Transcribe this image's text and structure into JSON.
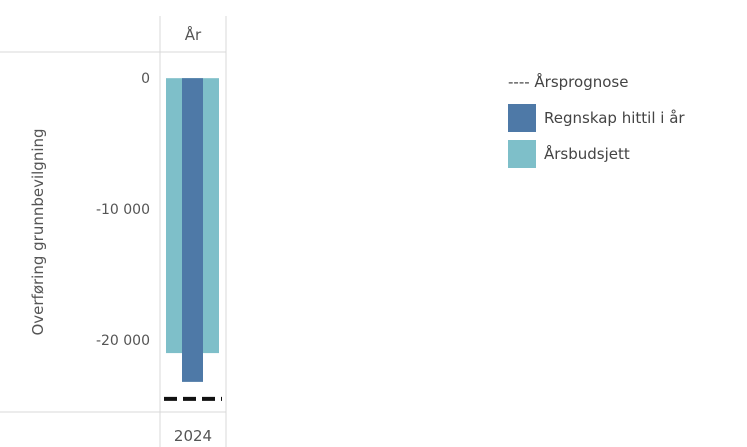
{
  "chart_data": {
    "type": "bar",
    "column_header": "År",
    "categories": [
      "2024"
    ],
    "ylabel": "Overføring grunnbevilgning",
    "ylim": [
      -25500,
      2000
    ],
    "y_ticks": [
      0,
      -10000,
      -20000
    ],
    "y_tick_labels": [
      "0",
      "-10 000",
      "-20 000"
    ],
    "series": [
      {
        "name": "Årsbudsjett",
        "type": "bar",
        "values": [
          -21000
        ],
        "color": "#7ebfc9"
      },
      {
        "name": "Regnskap hittil i år",
        "type": "bar",
        "values": [
          -23200
        ],
        "color": "#4e79a7"
      },
      {
        "name": "Årsprognose",
        "type": "reference-line",
        "values": [
          -24500
        ],
        "color": "#111111"
      }
    ],
    "legend_position": "right",
    "legend": [
      {
        "label": "---- Årsprognose",
        "style": "dash",
        "color": "#222222"
      },
      {
        "label": "Regnskap hittil i år",
        "style": "box",
        "color": "#4e79a7"
      },
      {
        "label": "Årsbudsjett",
        "style": "box",
        "color": "#7ebfc9"
      }
    ]
  }
}
